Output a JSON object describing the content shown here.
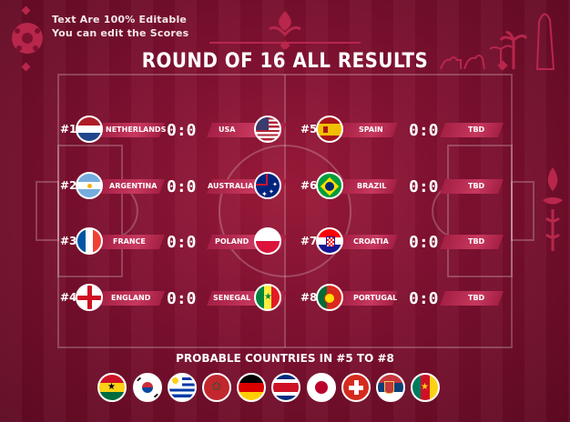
{
  "notes": {
    "line1": "Text Are 100% Editable",
    "line2": "You can edit the Scores"
  },
  "title": "ROUND OF 16 ALL RESULTS",
  "left_matches": [
    {
      "num": "#1",
      "team1": "NETHERLANDS",
      "score": "0:0",
      "team2": "USA",
      "flag1": "netherlands-flag-icon",
      "flag2": "usa-flag-icon"
    },
    {
      "num": "#2",
      "team1": "ARGENTINA",
      "score": "0:0",
      "team2": "AUSTRALIA",
      "flag1": "argentina-flag-icon",
      "flag2": "australia-flag-icon"
    },
    {
      "num": "#3",
      "team1": "FRANCE",
      "score": "0:0",
      "team2": "POLAND",
      "flag1": "france-flag-icon",
      "flag2": "poland-flag-icon"
    },
    {
      "num": "#4",
      "team1": "ENGLAND",
      "score": "0:0",
      "team2": "SENEGAL",
      "flag1": "england-flag-icon",
      "flag2": "senegal-flag-icon"
    }
  ],
  "right_matches": [
    {
      "num": "#5",
      "team": "SPAIN",
      "score": "0:0",
      "opponent": "TBD",
      "flag": "spain-flag-icon"
    },
    {
      "num": "#6",
      "team": "BRAZIL",
      "score": "0:0",
      "opponent": "TBD",
      "flag": "brazil-flag-icon"
    },
    {
      "num": "#7",
      "team": "CROATIA",
      "score": "0:0",
      "opponent": "TBD",
      "flag": "croatia-flag-icon"
    },
    {
      "num": "#8",
      "team": "PORTUGAL",
      "score": "0:0",
      "opponent": "TBD",
      "flag": "portugal-flag-icon"
    }
  ],
  "probable_title": "PROBABLE COUNTRIES IN #5 TO #8",
  "probable_flags": [
    "ghana-flag-icon",
    "south-korea-flag-icon",
    "uruguay-flag-icon",
    "morocco-flag-icon",
    "germany-flag-icon",
    "costa-rica-flag-icon",
    "japan-flag-icon",
    "switzerland-flag-icon",
    "serbia-flag-icon",
    "cameroon-flag-icon"
  ],
  "colors": {
    "background": "#7e1030",
    "band": "#c8385e",
    "text": "#ffffff"
  }
}
